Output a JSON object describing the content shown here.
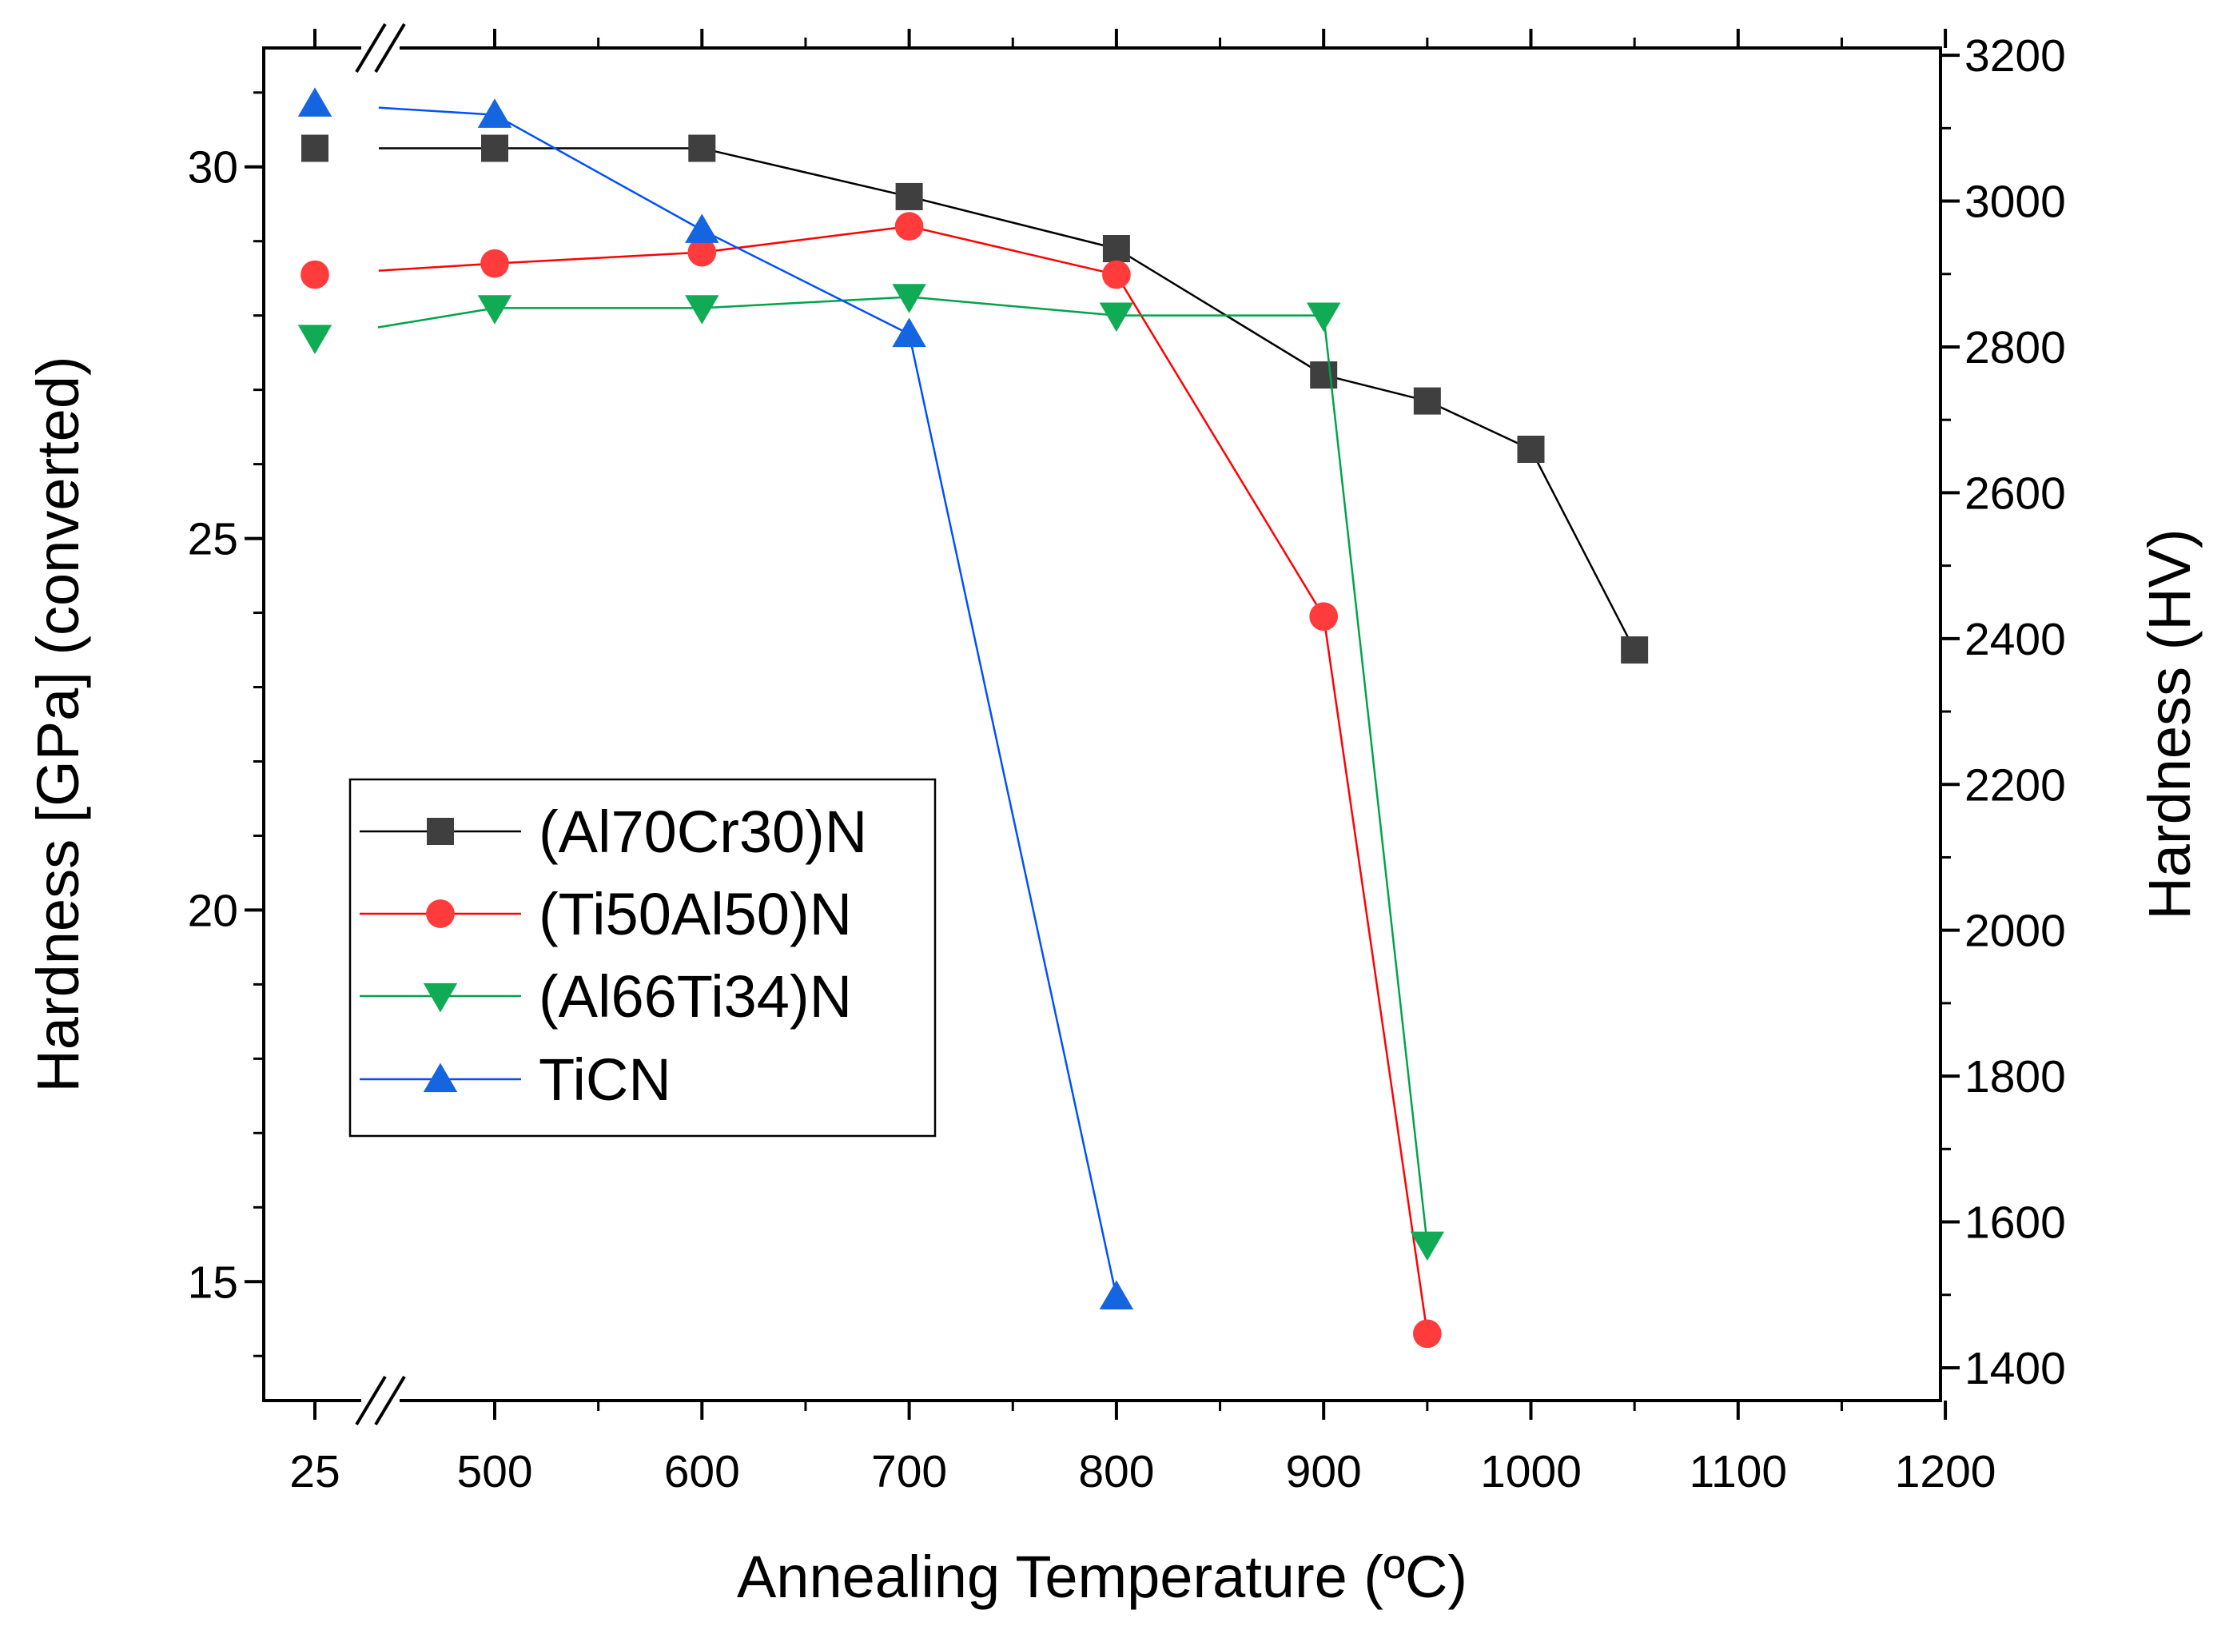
{
  "chart_data": {
    "type": "line",
    "xlabel": "Annealing Temperature (ºC)",
    "ylabel_left": "Hardness [GPa] (converted)",
    "ylabel_right": "Hardness (HV)",
    "x_ticks": [
      25,
      500,
      600,
      700,
      800,
      900,
      1000,
      1100,
      1200
    ],
    "x_tick_labels": [
      "25",
      "500",
      "600",
      "700",
      "800",
      "900",
      "1000",
      "1100",
      "1200"
    ],
    "x_axis_break_after": 25,
    "y_left_range": [
      13.4,
      31.6
    ],
    "y_left_ticks": [
      15,
      20,
      25,
      30
    ],
    "y_left_tick_labels": [
      "15",
      "20",
      "25",
      "30"
    ],
    "y_right_range": [
      1355,
      3210
    ],
    "y_right_ticks": [
      1400,
      1600,
      1800,
      2000,
      2200,
      2400,
      2600,
      2800,
      3000,
      3200
    ],
    "y_right_tick_labels": [
      "1400",
      "1600",
      "1800",
      "2000",
      "2200",
      "2400",
      "2600",
      "2800",
      "3000",
      "3200"
    ],
    "legend_position": "center-left",
    "series": [
      {
        "name": "(Al70Cr30)N",
        "color": "#000000",
        "marker_color": "#3f3f3f",
        "marker": "square",
        "x": [
          25,
          500,
          600,
          700,
          800,
          900,
          950,
          1000,
          1050
        ],
        "y": [
          30.25,
          30.25,
          30.25,
          29.6,
          28.9,
          27.2,
          26.85,
          26.2,
          23.5
        ]
      },
      {
        "name": "(Ti50Al50)N",
        "color": "#ff0000",
        "marker_color": "#ff3b3b",
        "marker": "circle",
        "x": [
          25,
          500,
          600,
          700,
          800,
          900,
          950
        ],
        "y": [
          28.55,
          28.7,
          28.85,
          29.2,
          28.55,
          23.95,
          14.3
        ]
      },
      {
        "name": "(Al66Ti34)N",
        "color": "#00a34a",
        "marker_color": "#11aa55",
        "marker": "triangle-down",
        "x": [
          25,
          500,
          600,
          700,
          800,
          900,
          950
        ],
        "y": [
          27.7,
          28.1,
          28.1,
          28.25,
          28.0,
          28.0,
          15.5
        ]
      },
      {
        "name": "TiCN",
        "color": "#0050ff",
        "marker_color": "#1565e0",
        "marker": "triangle-up",
        "x": [
          25,
          500,
          600,
          700,
          800
        ],
        "y": [
          30.85,
          30.7,
          29.15,
          27.75,
          14.8
        ]
      }
    ]
  }
}
